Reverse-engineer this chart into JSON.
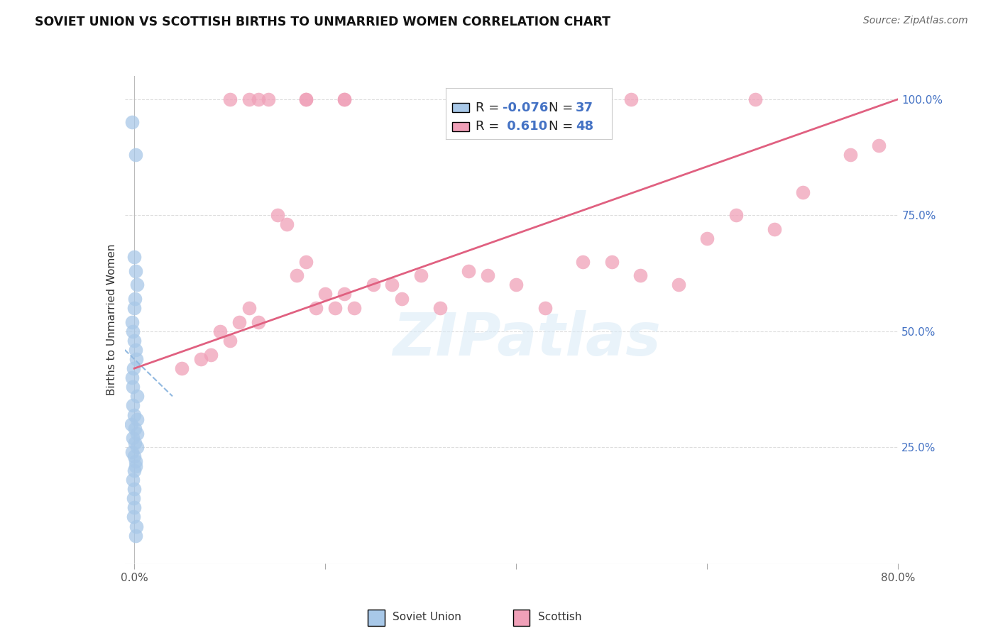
{
  "title": "SOVIET UNION VS SCOTTISH BIRTHS TO UNMARRIED WOMEN CORRELATION CHART",
  "source": "Source: ZipAtlas.com",
  "ylabel": "Births to Unmarried Women",
  "soviet_R": -0.076,
  "soviet_N": 37,
  "scottish_R": 0.61,
  "scottish_N": 48,
  "soviet_color": "#A8C8E8",
  "scottish_color": "#F0A0B8",
  "trend_soviet_color": "#90B8E0",
  "trend_scottish_color": "#E06080",
  "background_color": "#FFFFFF",
  "grid_color": "#DDDDDD",
  "right_tick_color": "#4472C4",
  "xlim": [
    0.0,
    0.8
  ],
  "ylim": [
    0.0,
    1.05
  ],
  "soviet_x": [
    0.0,
    0.0,
    0.0,
    0.0,
    0.0,
    0.0,
    0.0,
    0.0,
    0.0,
    0.0,
    0.0,
    0.0,
    0.0,
    0.0,
    0.0,
    0.0,
    0.0,
    0.0,
    0.0,
    0.0,
    0.0,
    0.0,
    0.0,
    0.0,
    0.0,
    0.0,
    0.0,
    0.0,
    0.0,
    0.0,
    0.0,
    0.0,
    0.0,
    0.0,
    0.0,
    0.0,
    0.0
  ],
  "soviet_y": [
    0.95,
    0.88,
    0.66,
    0.63,
    0.6,
    0.57,
    0.55,
    0.52,
    0.5,
    0.48,
    0.46,
    0.44,
    0.42,
    0.4,
    0.38,
    0.36,
    0.34,
    0.32,
    0.31,
    0.3,
    0.29,
    0.28,
    0.27,
    0.26,
    0.25,
    0.24,
    0.23,
    0.22,
    0.21,
    0.2,
    0.18,
    0.16,
    0.14,
    0.12,
    0.1,
    0.08,
    0.06
  ],
  "scottish_at_top_x": [
    0.1,
    0.12,
    0.13,
    0.14,
    0.18,
    0.18,
    0.22,
    0.22,
    0.38,
    0.38,
    0.52,
    0.65
  ],
  "scottish_at_top_y": [
    1.0,
    1.0,
    1.0,
    1.0,
    1.0,
    1.0,
    1.0,
    1.0,
    1.0,
    1.0,
    1.0,
    1.0
  ],
  "scottish_x": [
    0.05,
    0.07,
    0.08,
    0.09,
    0.1,
    0.11,
    0.12,
    0.13,
    0.15,
    0.16,
    0.17,
    0.18,
    0.19,
    0.2,
    0.21,
    0.22,
    0.23,
    0.25,
    0.27,
    0.28,
    0.3,
    0.32,
    0.35,
    0.37,
    0.4,
    0.43,
    0.47,
    0.5,
    0.53,
    0.57,
    0.6,
    0.63,
    0.67,
    0.7,
    0.75,
    0.78
  ],
  "scottish_y": [
    0.42,
    0.44,
    0.45,
    0.5,
    0.48,
    0.52,
    0.55,
    0.52,
    0.75,
    0.73,
    0.62,
    0.65,
    0.55,
    0.58,
    0.55,
    0.58,
    0.55,
    0.6,
    0.6,
    0.57,
    0.62,
    0.55,
    0.63,
    0.62,
    0.6,
    0.55,
    0.65,
    0.65,
    0.62,
    0.6,
    0.7,
    0.75,
    0.72,
    0.8,
    0.88,
    0.9
  ],
  "soviet_trend_x1": 0.0,
  "soviet_trend_y1": 0.46,
  "soviet_trend_x2": 0.04,
  "soviet_trend_y2": 0.36,
  "scottish_trend_x1": 0.0,
  "scottish_trend_y1": 0.42,
  "scottish_trend_x2": 0.8,
  "scottish_trend_y2": 1.0,
  "watermark_text": "ZIPatlas",
  "legend_R1": "R = -0.076",
  "legend_N1": "N = 37",
  "legend_R2": "R =  0.610",
  "legend_N2": "N = 48"
}
